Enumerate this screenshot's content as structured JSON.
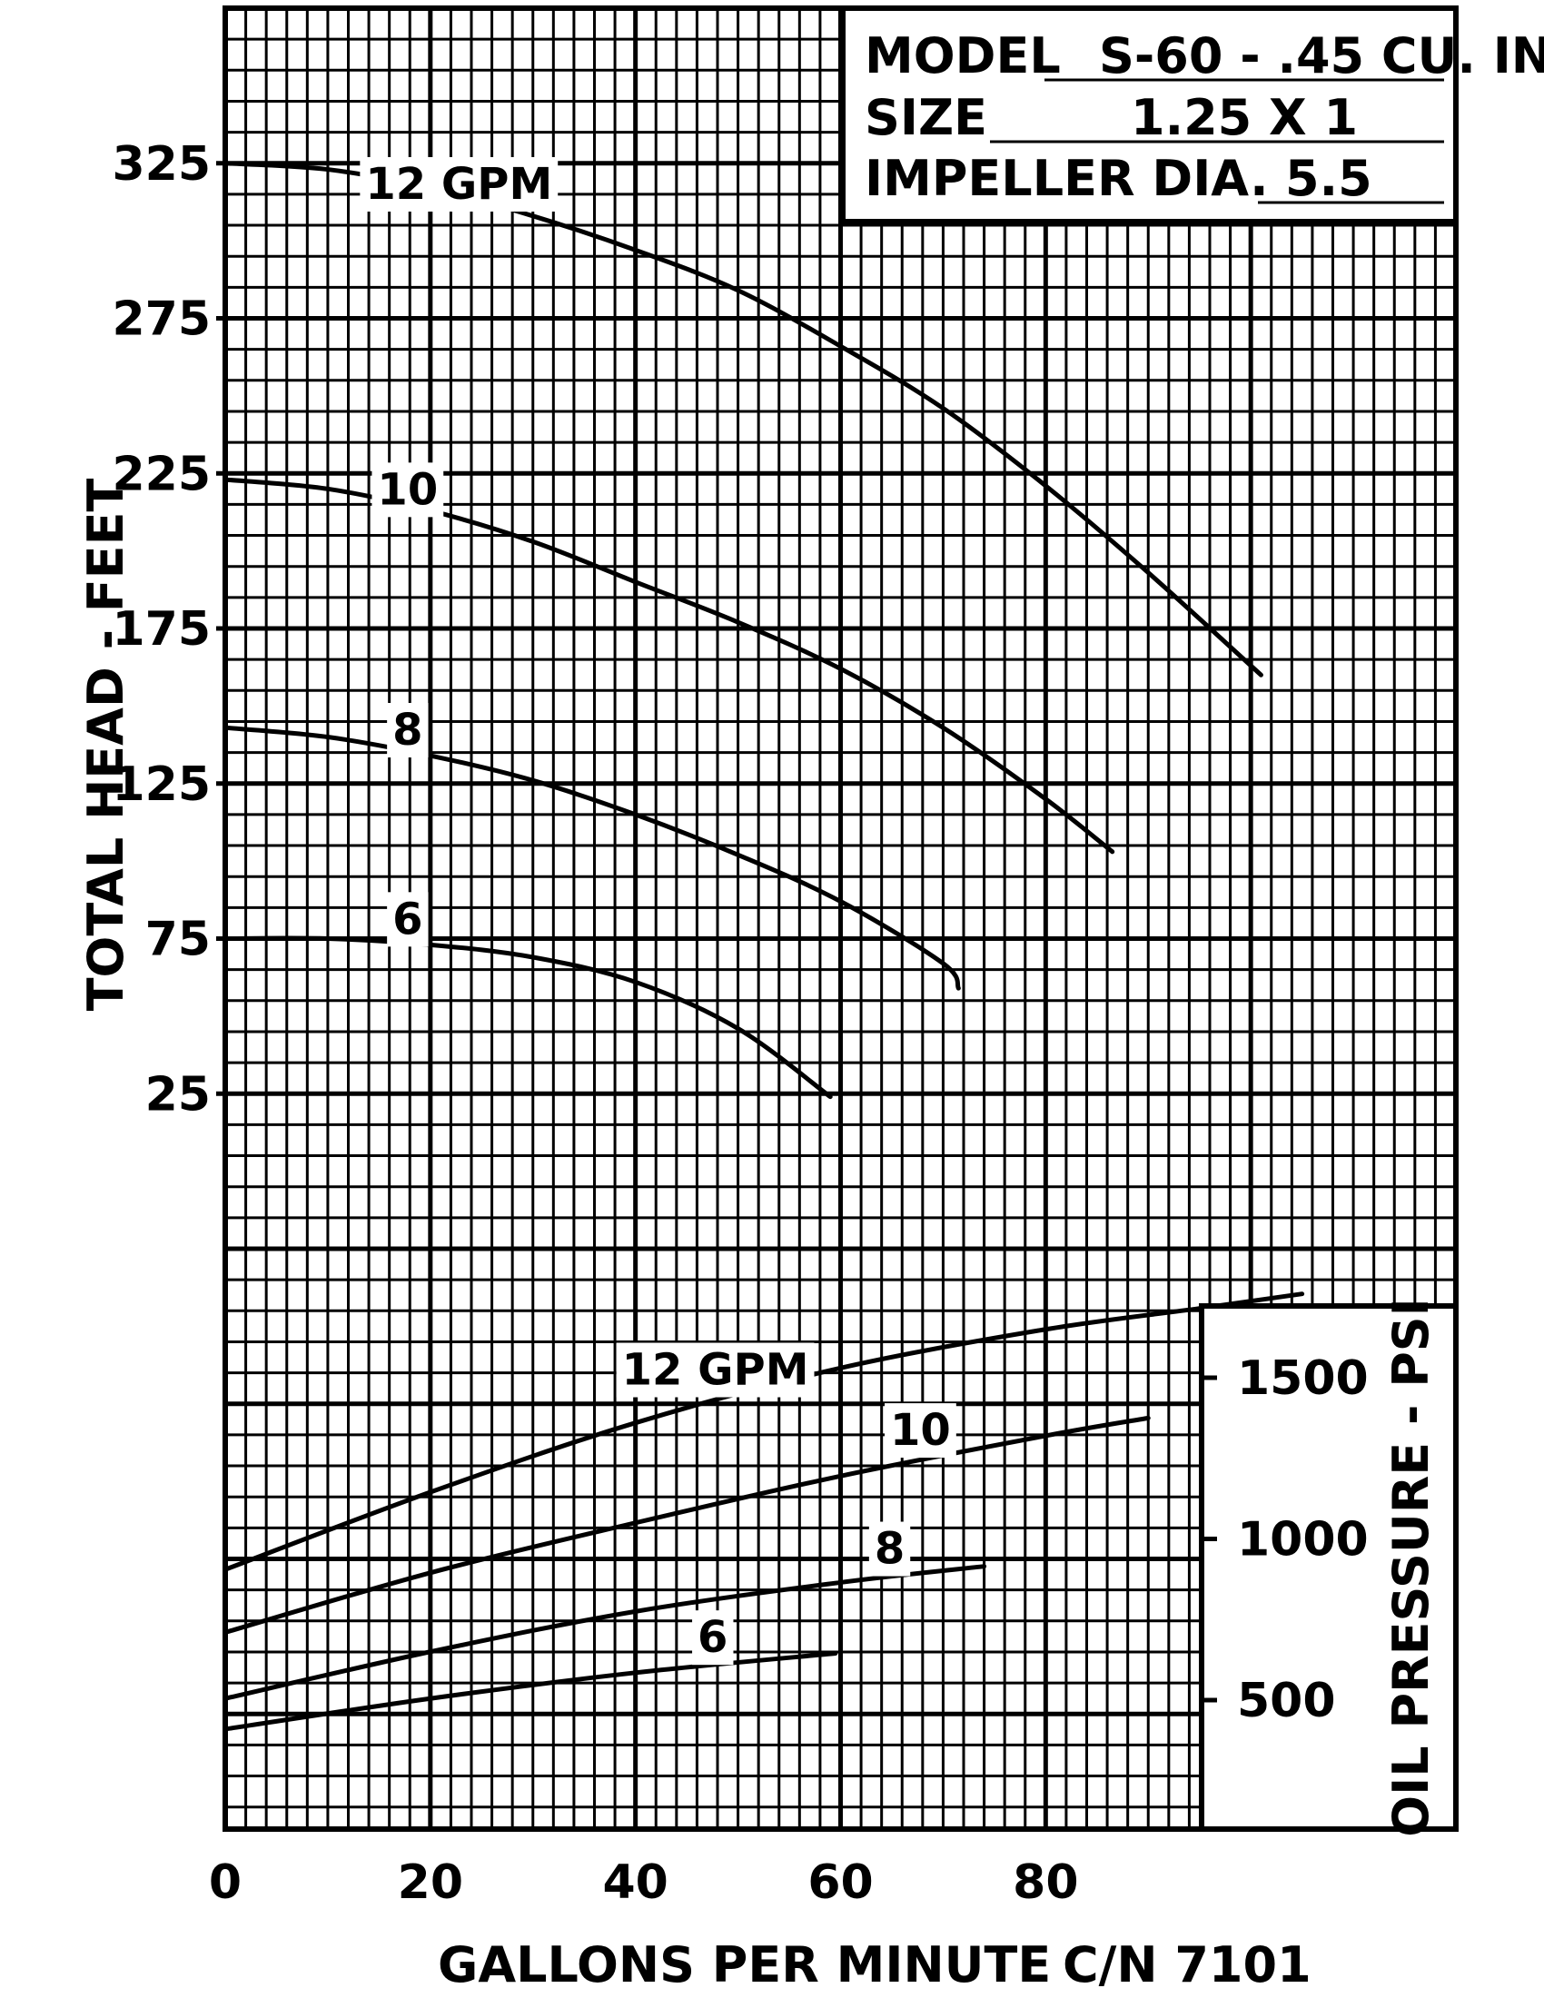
{
  "chart_data": {
    "type": "line",
    "info_box": {
      "model_label": "MODEL",
      "model_value": "S-60 - .45 CU. IN.",
      "size_label": "SIZE",
      "size_value": "1.25 X 1",
      "impeller_label": "IMPELLER DIA.",
      "impeller_value": "5.5"
    },
    "xlabel": "GALLONS PER MINUTE",
    "catalog_number": "C/N 7101",
    "x_ticks": [
      "0",
      "20",
      "40",
      "60",
      "80"
    ],
    "xlim": [
      0,
      120
    ],
    "head_chart": {
      "ylabel": "TOTAL HEAD - FEET",
      "y_ticks": [
        "325",
        "275",
        "225",
        "175",
        "125",
        "75",
        "25"
      ],
      "ylim": [
        -25,
        375
      ],
      "series": [
        {
          "name": "12 GPM",
          "x": [
            0,
            10,
            20,
            30,
            40,
            50,
            60,
            70,
            80,
            90,
            101
          ],
          "y": [
            325,
            323,
            317,
            308,
            297,
            284,
            266,
            246,
            221,
            193,
            160
          ]
        },
        {
          "name": "10",
          "x": [
            0,
            10,
            20,
            30,
            40,
            50,
            60,
            70,
            80,
            86.5
          ],
          "y": [
            223,
            220,
            213,
            203,
            190,
            177,
            162,
            143,
            120,
            103
          ]
        },
        {
          "name": "8",
          "x": [
            0,
            10,
            20,
            30,
            40,
            50,
            60,
            70,
            71.5
          ],
          "y": [
            143,
            140,
            134,
            126,
            115,
            102,
            87,
            67,
            59
          ]
        },
        {
          "name": "6",
          "x": [
            0,
            10,
            20,
            30,
            40,
            50,
            59
          ],
          "y": [
            75,
            75,
            73,
            69,
            61,
            46,
            24
          ]
        }
      ]
    },
    "pressure_chart": {
      "ylabel": "OIL PRESSURE - PSI",
      "y_ticks": [
        "1500",
        "1000",
        "500"
      ],
      "ylim": [
        100,
        1900
      ],
      "series": [
        {
          "name": "12 GPM",
          "x": [
            0,
            20,
            40,
            60,
            80,
            95,
            105
          ],
          "y": [
            905,
            1145,
            1360,
            1530,
            1650,
            1715,
            1760
          ]
        },
        {
          "name": "10",
          "x": [
            0,
            20,
            40,
            60,
            80,
            90
          ],
          "y": [
            710,
            895,
            1050,
            1195,
            1320,
            1375
          ]
        },
        {
          "name": "8",
          "x": [
            0,
            20,
            40,
            60,
            74
          ],
          "y": [
            505,
            650,
            775,
            865,
            915
          ]
        },
        {
          "name": "6",
          "x": [
            0,
            20,
            40,
            59.5
          ],
          "y": [
            410,
            505,
            585,
            645
          ]
        }
      ]
    }
  }
}
